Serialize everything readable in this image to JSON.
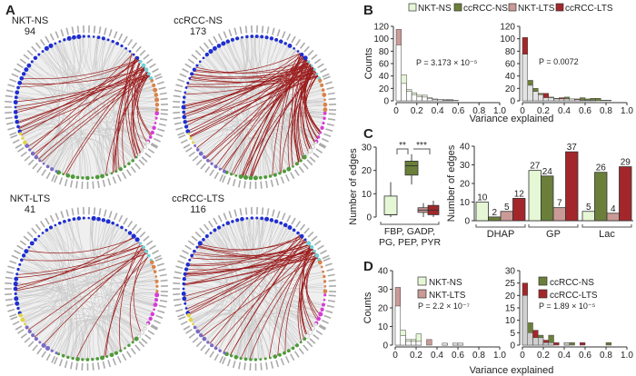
{
  "panels": {
    "A": "A",
    "B": "B",
    "C": "C",
    "D": "D"
  },
  "colors": {
    "NKT-NS": "#e6f7d6",
    "ccRCC-NS": "#6b7f3a",
    "NKT-LTS": "#c99a96",
    "ccRCC-LTS": "#a3272a",
    "edge_highlight": "#9b1c1c",
    "edge_background": "#c8c8c8"
  },
  "networks": [
    {
      "name": "NKT-NS",
      "edges": "94"
    },
    {
      "name": "ccRCC-NS",
      "edges": "173"
    },
    {
      "name": "NKT-LTS",
      "edges": "41"
    },
    {
      "name": "ccRCC-LTS",
      "edges": "116"
    }
  ],
  "legend_B": [
    "NKT-NS",
    "ccRCC-NS",
    "NKT-LTS",
    "ccRCC-LTS"
  ],
  "chart_data": [
    {
      "id": "B-left",
      "type": "bar",
      "subtype": "overlaid histogram",
      "xlabel": "Variance explained",
      "ylabel": "Counts",
      "xlim": [
        0,
        1.0
      ],
      "ylim": [
        0,
        120
      ],
      "xticks": [
        "0",
        "0.2",
        "0.4",
        "0.6",
        "0.8",
        "1.0"
      ],
      "yticks": [
        "0",
        "20",
        "40",
        "60",
        "80",
        "100",
        "120"
      ],
      "bin_width": 0.05,
      "annotation": "P = 3.173 × 10⁻⁵",
      "series": [
        {
          "name": "NKT-NS",
          "values": [
            90,
            42,
            18,
            13,
            9,
            9,
            5,
            3,
            2,
            2,
            2,
            1
          ]
        },
        {
          "name": "NKT-LTS",
          "values": [
            115,
            28,
            15,
            10,
            7,
            6,
            4,
            2,
            2,
            1,
            1,
            0
          ]
        }
      ]
    },
    {
      "id": "B-right",
      "type": "bar",
      "subtype": "overlaid histogram",
      "xlabel": "Variance explained",
      "xlim": [
        0,
        1.0
      ],
      "ylim": [
        0,
        120
      ],
      "xticks": [
        "0",
        "0.2",
        "0.4",
        "0.6",
        "0.8",
        "1.0"
      ],
      "yticks": [
        "0",
        "20",
        "40",
        "60",
        "80",
        "100",
        "120"
      ],
      "bin_width": 0.05,
      "annotation": "P = 0.0072",
      "series": [
        {
          "name": "ccRCC-NS",
          "values": [
            75,
            33,
            20,
            12,
            5,
            6,
            4,
            3,
            6,
            3,
            2,
            5,
            3,
            4,
            4,
            1,
            1
          ]
        },
        {
          "name": "ccRCC-LTS",
          "values": [
            102,
            25,
            15,
            10,
            12,
            5,
            3,
            5,
            3,
            3,
            3,
            1,
            1,
            1,
            0,
            0,
            0
          ]
        }
      ]
    },
    {
      "id": "C-box",
      "type": "box",
      "ylabel": "Number of edges",
      "ylim": [
        0,
        30
      ],
      "yticks": [
        "0",
        "10",
        "20",
        "30"
      ],
      "category": "FBP, GADP,\nPG, PEP, PYR",
      "category_lines": [
        "FBP, GADP,",
        "PG, PEP, PYR"
      ],
      "significance": [
        "**",
        "***"
      ],
      "boxes": [
        {
          "name": "NKT-NS",
          "min": 0,
          "q1": 1,
          "median": 1,
          "q3": 9,
          "max": 15
        },
        {
          "name": "ccRCC-NS",
          "min": 14,
          "q1": 18,
          "median": 22,
          "q3": 24,
          "max": 27
        },
        {
          "name": "NKT-LTS",
          "min": 0,
          "q1": 2,
          "median": 3,
          "q3": 4,
          "max": 6
        },
        {
          "name": "ccRCC-LTS",
          "min": 0,
          "q1": 1,
          "median": 3,
          "q3": 5,
          "max": 7
        }
      ]
    },
    {
      "id": "C-bar",
      "type": "bar",
      "ylabel": "Number of edges",
      "ylim": [
        0,
        40
      ],
      "yticks": [
        "0",
        "10",
        "20",
        "30",
        "40"
      ],
      "categories": [
        "DHAP",
        "GP",
        "Lac"
      ],
      "series": [
        {
          "name": "NKT-NS",
          "values": [
            10,
            27,
            5
          ]
        },
        {
          "name": "ccRCC-NS",
          "values": [
            2,
            24,
            26
          ]
        },
        {
          "name": "NKT-LTS",
          "values": [
            5,
            7,
            4
          ]
        },
        {
          "name": "ccRCC-LTS",
          "values": [
            12,
            37,
            29
          ]
        }
      ]
    },
    {
      "id": "D-left",
      "type": "bar",
      "subtype": "overlaid histogram",
      "xlabel": "Variance explained",
      "ylabel": "Counts",
      "xlim": [
        0,
        1.0
      ],
      "ylim": [
        0,
        40
      ],
      "xticks": [
        "0",
        "0.2",
        "0.4",
        "0.6",
        "0.8",
        "1.0"
      ],
      "yticks": [
        "0",
        "10",
        "20",
        "30",
        "40"
      ],
      "bin_width": 0.05,
      "annotation": "P = 2.2 × 10⁻⁷",
      "legend": [
        "NKT-NS",
        "NKT-LTS"
      ],
      "series": [
        {
          "name": "NKT-NS",
          "values": [
            21,
            8,
            3,
            3,
            6,
            0,
            0,
            0,
            0,
            1,
            0,
            1,
            1
          ]
        },
        {
          "name": "NKT-LTS",
          "values": [
            31,
            5,
            2,
            2,
            2,
            0,
            3,
            0,
            0,
            1,
            0,
            1,
            1
          ]
        }
      ]
    },
    {
      "id": "D-right",
      "type": "bar",
      "subtype": "overlaid histogram",
      "xlabel": "Variance explained",
      "xlim": [
        0,
        1.0
      ],
      "ylim": [
        0,
        30
      ],
      "xticks": [
        "0",
        "0.2",
        "0.4",
        "0.6",
        "0.8",
        "1.0"
      ],
      "yticks": [
        "0",
        "5",
        "10",
        "15",
        "20",
        "25",
        "30"
      ],
      "bin_width": 0.05,
      "annotation": "P = 1.89 × 10⁻⁵",
      "legend": [
        "ccRCC-NS",
        "ccRCC-LTS"
      ],
      "series": [
        {
          "name": "ccRCC-NS",
          "values": [
            20,
            9,
            3,
            4,
            1,
            4,
            0,
            0,
            1,
            1,
            0,
            0,
            0,
            0,
            0,
            0,
            1
          ]
        },
        {
          "name": "ccRCC-LTS",
          "values": [
            25,
            5,
            6,
            3,
            2,
            1,
            1,
            0,
            1,
            0,
            0,
            1,
            0,
            0,
            0,
            0,
            0
          ]
        }
      ]
    }
  ]
}
